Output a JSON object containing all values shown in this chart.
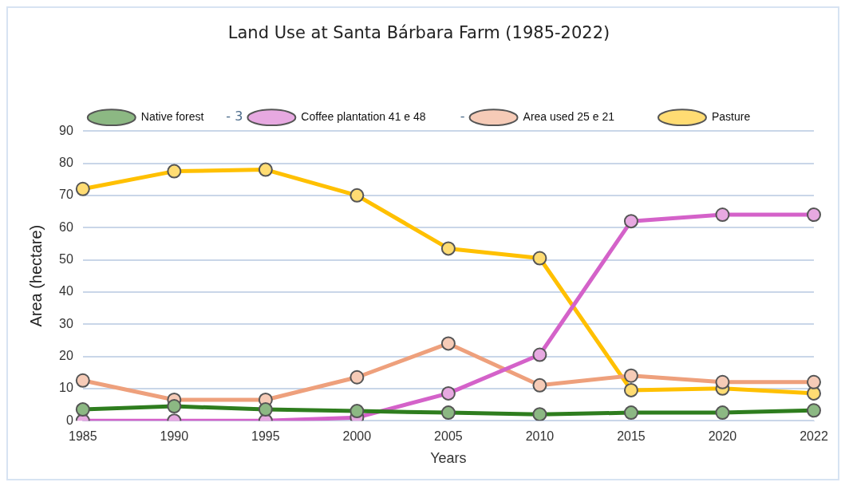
{
  "chart_data": {
    "type": "line",
    "title": "Land Use at Santa Bárbara Farm (1985-2022)",
    "xlabel": "Years",
    "ylabel": "Area (hectare)",
    "categories": [
      "1985",
      "1990",
      "1995",
      "2000",
      "2005",
      "2010",
      "2015",
      "2020",
      "2022"
    ],
    "series": [
      {
        "name": "Native forest",
        "color": "#2e7d1e",
        "values": [
          3.5,
          4.5,
          3.5,
          3,
          2.5,
          2,
          2.5,
          2.5,
          3.2
        ]
      },
      {
        "name": "Coffee plantation 41 e 48",
        "color": "#d462c9",
        "values": [
          0,
          0,
          0,
          1,
          8.5,
          20.5,
          62,
          64,
          64
        ]
      },
      {
        "name": "Area used 25 e 21",
        "color": "#eea07c",
        "values": [
          12.5,
          6.5,
          6.5,
          13.5,
          24,
          11,
          14,
          12,
          12
        ]
      },
      {
        "name": "Pasture",
        "color": "#ffc000",
        "values": [
          72,
          77.5,
          78,
          70,
          53.5,
          50.5,
          9.5,
          10,
          8.5
        ]
      }
    ],
    "annotations": [
      "- 3",
      "-"
    ],
    "ylim": [
      0,
      90
    ],
    "yticks": [
      0,
      10,
      20,
      30,
      40,
      50,
      60,
      70,
      80,
      90
    ],
    "grid": "y",
    "legend": "top",
    "marker": "circle",
    "line_style": "solid"
  }
}
